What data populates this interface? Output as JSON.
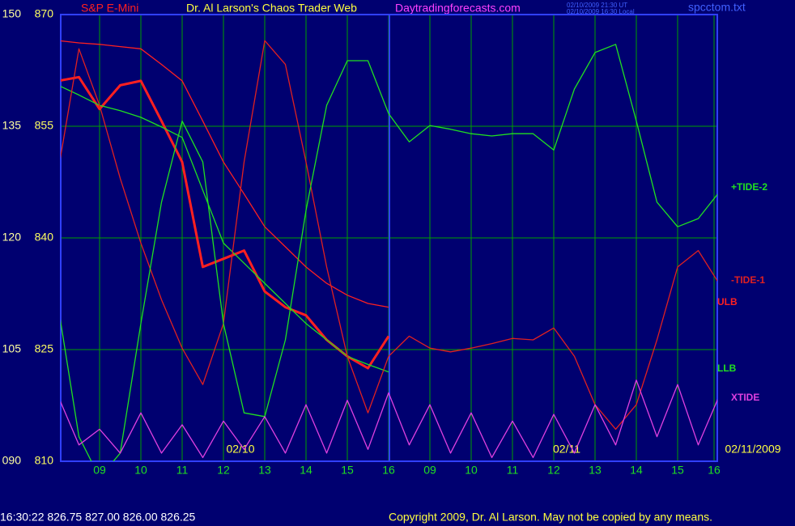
{
  "chart_data": {
    "type": "line",
    "title": "Dr. Al Larson's Chaos Trader Web",
    "source": "Daytradingforecasts.com",
    "timestamps": [
      "02/10/2009 21:30 UT",
      "02/10/2009 16:30 Local"
    ],
    "file": "spcctom.txt",
    "date_labels": [
      "02/10",
      "02/11",
      "02/11/2009"
    ],
    "status": "16:30:22  826.75 827.00 826.00 826.25",
    "copyright": "Copyright 2009, Dr. Al Larson. May not be copied by any means.",
    "categories": [
      null,
      null,
      "09",
      null,
      "10",
      null,
      "11",
      null,
      "12",
      null,
      "13",
      null,
      "14",
      null,
      "15",
      null,
      "16",
      null,
      "09",
      null,
      "10",
      null,
      "11",
      null,
      "12",
      null,
      "13",
      null,
      "14",
      null,
      "15",
      null,
      "16"
    ],
    "ylim": [
      810,
      870
    ],
    "yticks": [
      870,
      855,
      840,
      825,
      810
    ],
    "y2lim": [
      90,
      150
    ],
    "y2ticks": [
      150,
      135,
      120,
      105,
      {
        "value": 90,
        "label": "090"
      }
    ],
    "grid": true,
    "series": [
      {
        "name": "S&P E-Mini",
        "color": "#ff2020",
        "values": [
          861.1,
          861.6,
          857.3,
          860.5,
          861.1,
          855.7,
          850.2,
          836.1,
          837.2,
          838.3,
          832.8,
          830.7,
          829.6,
          826.3,
          824.1,
          822.5,
          826.8,
          null,
          null,
          null,
          null,
          null,
          null,
          null,
          null,
          null,
          null,
          null,
          null,
          null,
          null,
          null,
          null
        ]
      },
      {
        "name": "ULB",
        "color": "#ff2020",
        "values": [
          866.5,
          866.2,
          866.0,
          865.7,
          865.4,
          863.3,
          861.1,
          855.7,
          850.2,
          845.9,
          841.5,
          838.8,
          836.1,
          833.9,
          832.3,
          831.2,
          830.7,
          null,
          null,
          null,
          null,
          null,
          null,
          null,
          null,
          null,
          null,
          null,
          null,
          null,
          null,
          null,
          null
        ]
      },
      {
        "name": "LLB",
        "color": "#20e020",
        "values": [
          860.5,
          859.2,
          857.8,
          857.1,
          856.2,
          854.9,
          853.5,
          846.4,
          839.3,
          836.6,
          833.9,
          831.2,
          828.5,
          826.3,
          824.1,
          823.0,
          822.0,
          null,
          null,
          null,
          null,
          null,
          null,
          null,
          null,
          null,
          null,
          null,
          null,
          null,
          null,
          null,
          null
        ]
      },
      {
        "name": "-TIDE-1",
        "color": "#e02020",
        "values": [
          849.1,
          865.4,
          857.8,
          848.0,
          839.3,
          831.7,
          825.2,
          820.3,
          828.5,
          850.2,
          866.5,
          863.3,
          850.2,
          836.1,
          824.1,
          816.5,
          824.1,
          826.8,
          825.2,
          824.7,
          825.2,
          825.8,
          826.5,
          826.3,
          827.9,
          824.1,
          817.6,
          814.3,
          817.6,
          826.3,
          836.1,
          838.3,
          833.9
        ]
      },
      {
        "name": "+TIDE-2",
        "color": "#20e020",
        "axis": "y2",
        "values": [
          110.7,
          93.3,
          87.8,
          91.1,
          108.5,
          124.8,
          135.7,
          130.2,
          108.5,
          96.5,
          96.0,
          106.3,
          123.7,
          137.8,
          143.8,
          143.8,
          136.7,
          132.9,
          135.1,
          134.6,
          134.0,
          133.7,
          134.0,
          134.0,
          131.8,
          140.0,
          144.9,
          146.0,
          135.7,
          124.8,
          121.5,
          122.6,
          126.1
        ]
      },
      {
        "name": "XTIDE",
        "color": "#e040e0",
        "axis": "y2",
        "values": [
          98.7,
          92.2,
          94.3,
          91.1,
          96.5,
          91.1,
          94.9,
          90.5,
          95.4,
          91.6,
          96.0,
          91.1,
          97.6,
          91.1,
          98.2,
          91.6,
          99.2,
          92.2,
          97.6,
          91.1,
          96.5,
          90.5,
          95.4,
          90.5,
          96.3,
          91.1,
          97.6,
          92.2,
          100.9,
          93.3,
          100.3,
          92.2,
          98.7
        ]
      }
    ]
  }
}
